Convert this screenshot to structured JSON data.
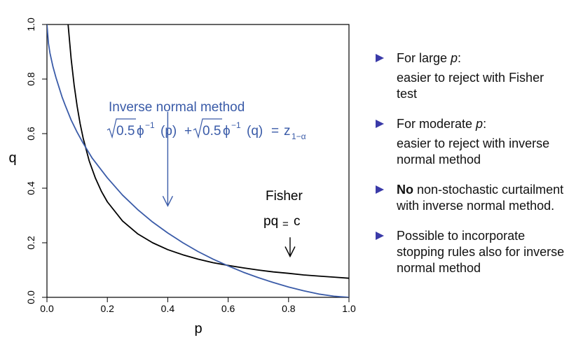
{
  "chart_data": {
    "type": "line",
    "xlabel": "p",
    "ylabel": "q",
    "xlim": [
      0,
      1
    ],
    "ylim": [
      0,
      1
    ],
    "x_ticks": [
      "0.0",
      "0.2",
      "0.4",
      "0.6",
      "0.8",
      "1.0"
    ],
    "y_ticks": [
      "0.0",
      "0.2",
      "0.4",
      "0.6",
      "0.8",
      "1.0"
    ],
    "grid": false,
    "series": [
      {
        "color": "#000000",
        "points": [
          [
            0.07,
            1.0
          ],
          [
            0.08,
            0.875
          ],
          [
            0.09,
            0.778
          ],
          [
            0.1,
            0.7
          ],
          [
            0.11,
            0.636
          ],
          [
            0.12,
            0.583
          ],
          [
            0.14,
            0.5
          ],
          [
            0.16,
            0.438
          ],
          [
            0.18,
            0.389
          ],
          [
            0.2,
            0.35
          ],
          [
            0.25,
            0.28
          ],
          [
            0.3,
            0.233
          ],
          [
            0.35,
            0.2
          ],
          [
            0.4,
            0.175
          ],
          [
            0.45,
            0.156
          ],
          [
            0.5,
            0.14
          ],
          [
            0.55,
            0.127
          ],
          [
            0.6,
            0.117
          ],
          [
            0.65,
            0.108
          ],
          [
            0.7,
            0.1
          ],
          [
            0.75,
            0.093
          ],
          [
            0.8,
            0.088
          ],
          [
            0.85,
            0.082
          ],
          [
            0.9,
            0.078
          ],
          [
            0.95,
            0.074
          ],
          [
            1.0,
            0.07
          ]
        ]
      },
      {
        "color": "#3a5ba8",
        "points": [
          [
            0.0,
            1.0
          ],
          [
            0.005,
            0.93
          ],
          [
            0.01,
            0.895
          ],
          [
            0.02,
            0.845
          ],
          [
            0.03,
            0.805
          ],
          [
            0.04,
            0.77
          ],
          [
            0.05,
            0.735
          ],
          [
            0.06,
            0.705
          ],
          [
            0.08,
            0.65
          ],
          [
            0.1,
            0.605
          ],
          [
            0.12,
            0.565
          ],
          [
            0.15,
            0.51
          ],
          [
            0.2,
            0.438
          ],
          [
            0.25,
            0.375
          ],
          [
            0.3,
            0.322
          ],
          [
            0.35,
            0.276
          ],
          [
            0.4,
            0.236
          ],
          [
            0.45,
            0.2
          ],
          [
            0.5,
            0.168
          ],
          [
            0.55,
            0.14
          ],
          [
            0.6,
            0.115
          ],
          [
            0.65,
            0.092
          ],
          [
            0.7,
            0.072
          ],
          [
            0.75,
            0.054
          ],
          [
            0.8,
            0.038
          ],
          [
            0.85,
            0.024
          ],
          [
            0.9,
            0.012
          ],
          [
            0.95,
            0.004
          ],
          [
            1.0,
            0.0
          ]
        ]
      }
    ],
    "annotations": {
      "inverse": {
        "title": "Inverse normal method",
        "formula": {
          "sqrt1": "0.5",
          "phi1": "ϕ",
          "sup1": "−1",
          "arg1": "(p)",
          "plus": "+",
          "sqrt2": "0.5",
          "phi2": "ϕ",
          "sup2": "−1",
          "arg2": "(q)",
          "eq": "=",
          "z": "z",
          "zsub": "1−α"
        },
        "arrow_from": [
          0.4,
          0.68
        ],
        "arrow_to": [
          0.4,
          0.335
        ],
        "color": "#3a5ba8"
      },
      "fisher": {
        "title": "Fisher",
        "formula_lhs": "pq",
        "formula_eq": "=",
        "formula_rhs": "c",
        "arrow_from": [
          0.805,
          0.22
        ],
        "arrow_to": [
          0.805,
          0.15
        ],
        "color": "#000000"
      }
    }
  },
  "bullets": [
    {
      "head_text": "For large ",
      "head_var": "p",
      "head_colon": ":",
      "sub": "easier to reject with Fisher test"
    },
    {
      "head_text": "For moderate ",
      "head_var": "p",
      "head_colon": ":",
      "sub": "easier to reject with inverse normal method"
    },
    {
      "bold": "No",
      "text": " non-stochastic curtailment with inverse normal method."
    },
    {
      "text": "Possible to incorporate stopping rules also for inverse normal method"
    }
  ],
  "colors": {
    "bullet": "#3a3aa8",
    "inverse_curve": "#3a5ba8",
    "fisher_curve": "#000000"
  }
}
